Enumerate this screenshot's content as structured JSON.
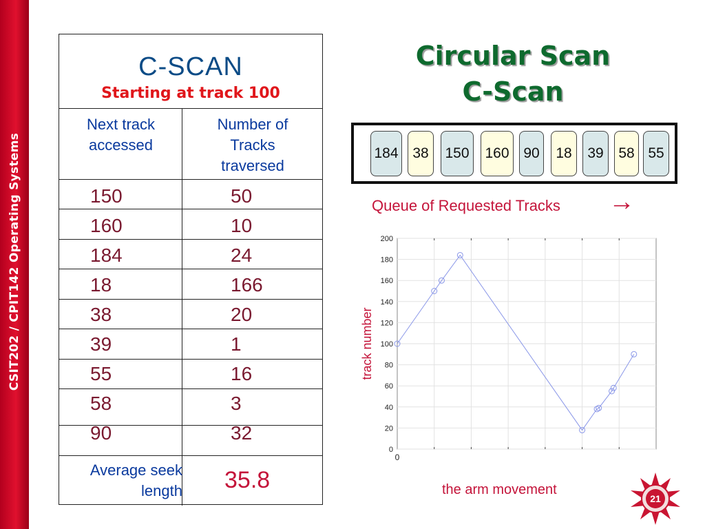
{
  "sidebar": {
    "course": "CSIT202 / CPIT142 Operating Systems"
  },
  "table": {
    "title": "C-SCAN",
    "subtitle": "Starting at track 100",
    "col1_header": [
      "Next track",
      "accessed"
    ],
    "col2_header": [
      "Number of",
      "Tracks",
      "traversed"
    ],
    "rows": [
      {
        "next": "150",
        "traversed": "50"
      },
      {
        "next": "160",
        "traversed": "10"
      },
      {
        "next": "184",
        "traversed": "24"
      },
      {
        "next": "18",
        "traversed": "166"
      },
      {
        "next": "38",
        "traversed": "20"
      },
      {
        "next": "39",
        "traversed": "1"
      },
      {
        "next": "55",
        "traversed": "16"
      },
      {
        "next": "58",
        "traversed": "3"
      },
      {
        "next": "90",
        "traversed": "32"
      }
    ],
    "avg_label": [
      "Average seek",
      "length"
    ],
    "avg_value": "35.8"
  },
  "slide_title": [
    "Circular Scan",
    "C-Scan"
  ],
  "queue": {
    "items": [
      "184",
      "38",
      "150",
      "160",
      "90",
      "18",
      "39",
      "58",
      "55"
    ],
    "caption": "Queue of Requested Tracks",
    "arrow": "→"
  },
  "arm_caption": "the arm movement",
  "page_number": "21",
  "colors": {
    "sidebar": "#d0102a",
    "title_green": "#0e6a2e",
    "accent_red": "#c4143a",
    "header_blue": "#0a3a9e",
    "queue_blue": "#d9e8ea",
    "queue_yellow": "#fffde0"
  },
  "chart_data": {
    "type": "line",
    "ylabel": "track number",
    "xlabel": "",
    "ylim": [
      0,
      200
    ],
    "yticks": [
      0,
      20,
      40,
      60,
      80,
      100,
      120,
      140,
      160,
      180,
      200
    ],
    "xtick_labels": [
      "0"
    ],
    "grid": true,
    "series": [
      {
        "points": [
          {
            "x": 0,
            "y": 100
          },
          {
            "x": 1,
            "y": 150
          },
          {
            "x": 1.2,
            "y": 160
          },
          {
            "x": 1.7,
            "y": 184
          },
          {
            "x": 5,
            "y": 18
          },
          {
            "x": 5.4,
            "y": 38
          },
          {
            "x": 5.45,
            "y": 39
          },
          {
            "x": 5.8,
            "y": 55
          },
          {
            "x": 5.85,
            "y": 58
          },
          {
            "x": 6.4,
            "y": 90
          }
        ]
      }
    ]
  }
}
